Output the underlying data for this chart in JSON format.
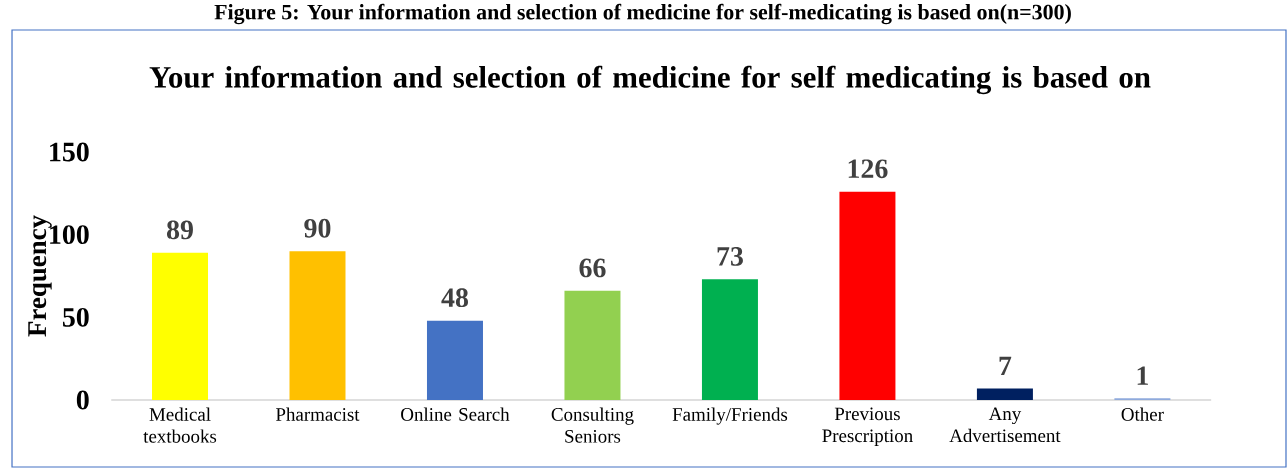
{
  "chart_data": {
    "type": "bar",
    "title": "Your information and selection of medicine for self medicating is based on",
    "annotations": [
      "Figure 5: Your information and selection of medicine for self-medicating is based on(n=300)"
    ],
    "ylabel": "Frequency",
    "categories": [
      "Medical textbooks",
      "Pharmacist",
      "Online Search",
      "Consulting Seniors",
      "Family/Friends",
      "Previous Prescription",
      "Any Advertisement",
      "Other"
    ],
    "values": [
      89,
      90,
      48,
      66,
      73,
      126,
      7,
      1
    ],
    "colors": [
      "#ffff00",
      "#ffc000",
      "#4472c4",
      "#92d050",
      "#00b050",
      "#ff0000",
      "#002060",
      "#8faadc"
    ],
    "ylim": [
      0,
      150
    ],
    "yticks": [
      0,
      50,
      100,
      150
    ],
    "grid": false,
    "data_labels": true
  }
}
